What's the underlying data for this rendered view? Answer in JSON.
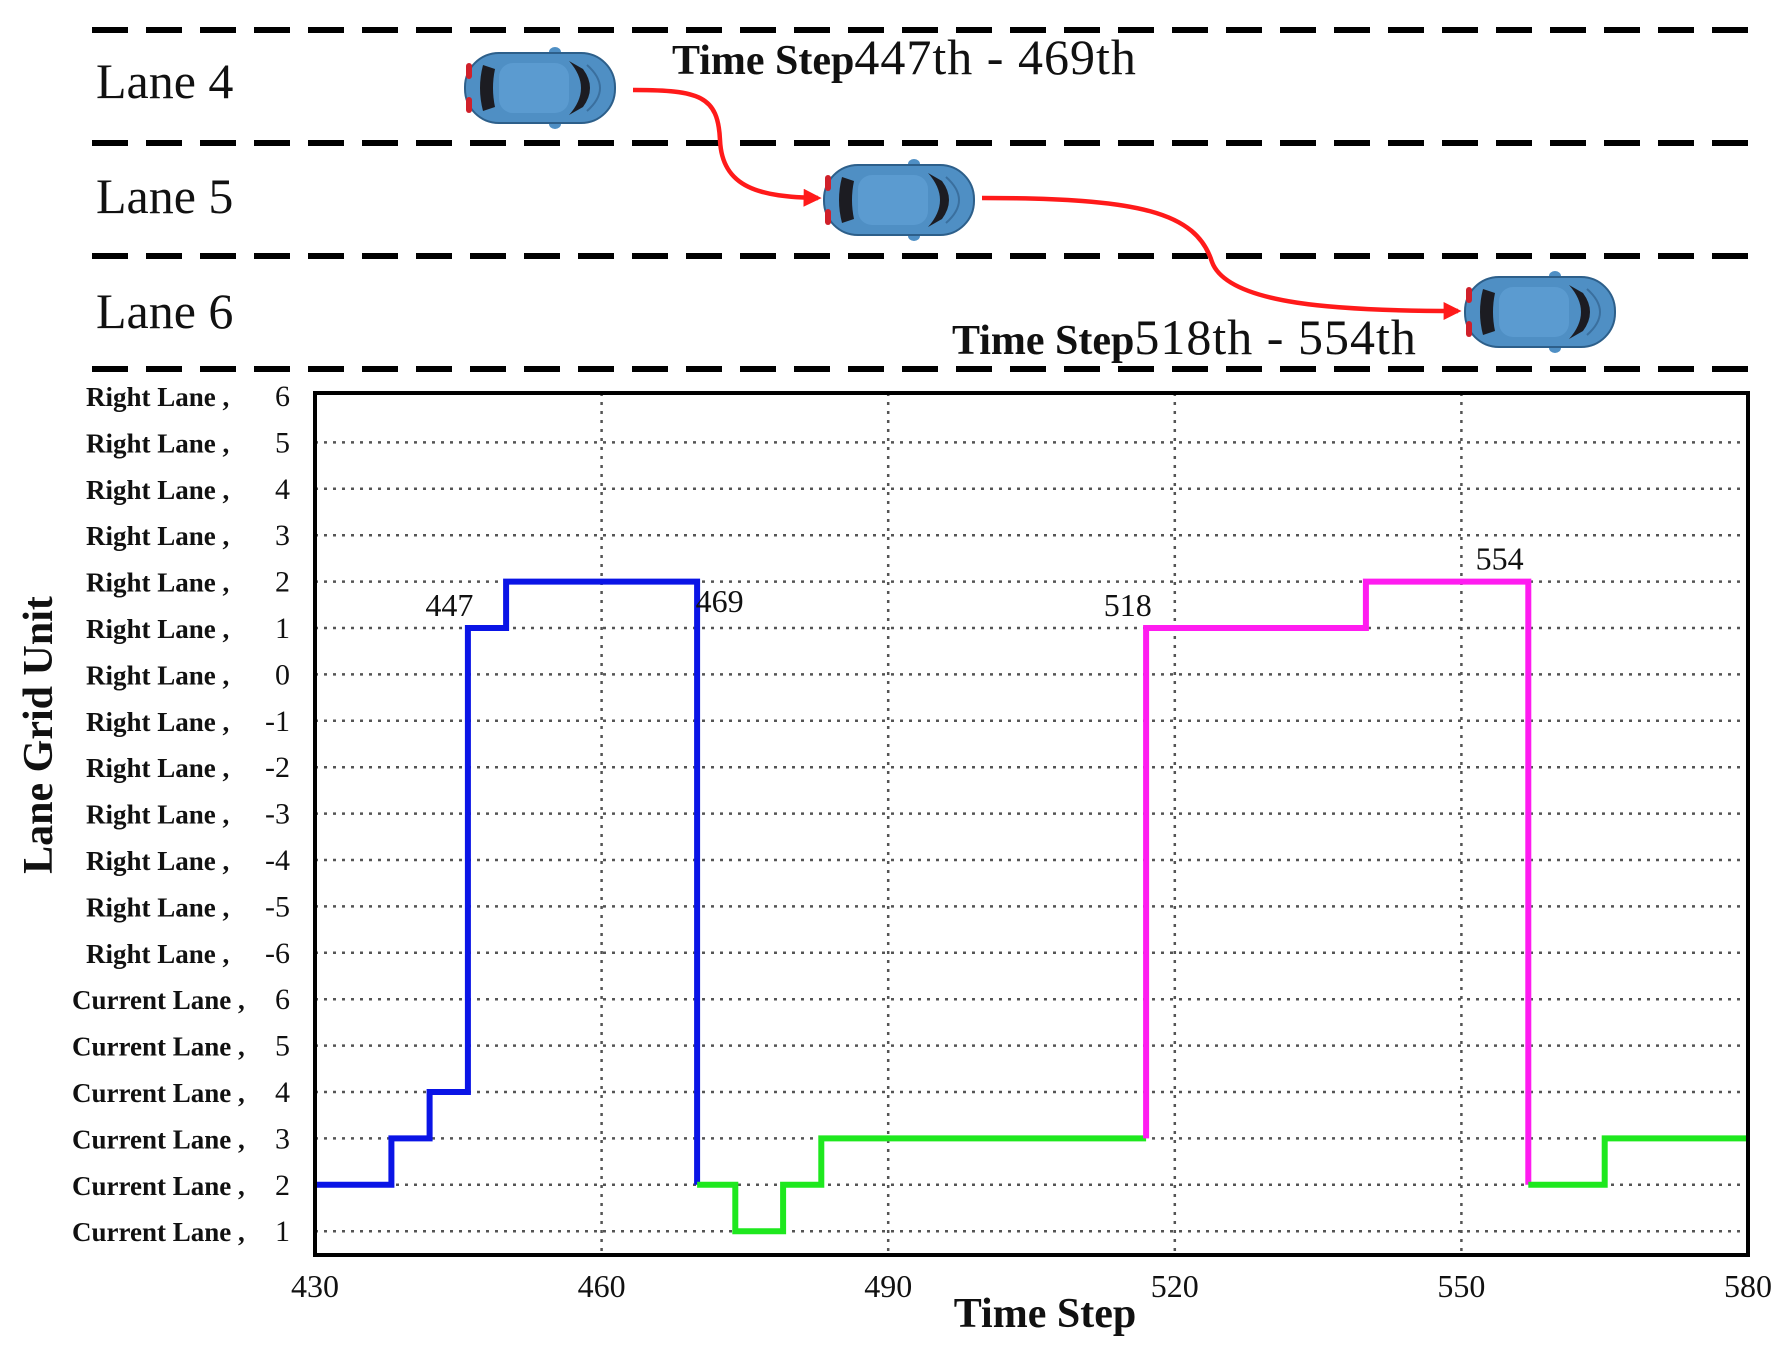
{
  "road": {
    "lanes": [
      {
        "label": "Lane 4"
      },
      {
        "label": "Lane 5"
      },
      {
        "label": "Lane 6"
      }
    ],
    "time_step_word": "Time Step",
    "range_top": "447th - 469th",
    "range_bottom": "518th - 554th",
    "car_color": "#4f8fc4",
    "arrow_color": "#ff1a1a"
  },
  "chart_data": {
    "type": "line",
    "step": true,
    "xlabel": "Time Step",
    "ylabel": "Lane Grid Unit",
    "xlim": [
      430,
      580
    ],
    "x_ticks": [
      430,
      460,
      490,
      520,
      550,
      580
    ],
    "y_ticks": [
      {
        "name": "Right Lane",
        "num": "6"
      },
      {
        "name": "Right Lane",
        "num": "5"
      },
      {
        "name": "Right Lane",
        "num": "4"
      },
      {
        "name": "Right Lane",
        "num": "3"
      },
      {
        "name": "Right Lane",
        "num": "2"
      },
      {
        "name": "Right Lane",
        "num": "1"
      },
      {
        "name": "Right Lane",
        "num": "0"
      },
      {
        "name": "Right Lane",
        "num": "-1"
      },
      {
        "name": "Right Lane",
        "num": "-2"
      },
      {
        "name": "Right Lane",
        "num": "-3"
      },
      {
        "name": "Right Lane",
        "num": "-4"
      },
      {
        "name": "Right Lane",
        "num": "-5"
      },
      {
        "name": "Right Lane",
        "num": "-6"
      },
      {
        "name": "Current Lane",
        "num": "6"
      },
      {
        "name": "Current Lane",
        "num": "5"
      },
      {
        "name": "Current Lane",
        "num": "4"
      },
      {
        "name": "Current Lane",
        "num": "3"
      },
      {
        "name": "Current Lane",
        "num": "2"
      },
      {
        "name": "Current Lane",
        "num": "1"
      }
    ],
    "grid": true,
    "series": [
      {
        "color": "#0a14e6",
        "points": [
          [
            430,
            "Current Lane, 2"
          ],
          [
            438,
            "Current Lane, 2"
          ],
          [
            438,
            "Current Lane, 3"
          ],
          [
            442,
            "Current Lane, 3"
          ],
          [
            442,
            "Current Lane, 4"
          ],
          [
            446,
            "Current Lane, 4"
          ],
          [
            446,
            "Right Lane, 1"
          ],
          [
            450,
            "Right Lane, 1"
          ],
          [
            450,
            "Right Lane, 2"
          ],
          [
            470,
            "Right Lane, 2"
          ],
          [
            470,
            "Current Lane, 2"
          ]
        ]
      },
      {
        "color": "#1ee81e",
        "points": [
          [
            470,
            "Current Lane, 2"
          ],
          [
            474,
            "Current Lane, 2"
          ],
          [
            474,
            "Current Lane, 1"
          ],
          [
            479,
            "Current Lane, 1"
          ],
          [
            479,
            "Current Lane, 2"
          ],
          [
            483,
            "Current Lane, 2"
          ],
          [
            483,
            "Current Lane, 3"
          ],
          [
            517,
            "Current Lane, 3"
          ]
        ]
      },
      {
        "color": "#ff1cf0",
        "points": [
          [
            517,
            "Current Lane, 3"
          ],
          [
            517,
            "Right Lane, 1"
          ],
          [
            540,
            "Right Lane, 1"
          ],
          [
            540,
            "Right Lane, 2"
          ],
          [
            557,
            "Right Lane, 2"
          ],
          [
            557,
            "Current Lane, 2"
          ]
        ]
      },
      {
        "color": "#1ee81e",
        "points": [
          [
            557,
            "Current Lane, 2"
          ],
          [
            565,
            "Current Lane, 2"
          ],
          [
            565,
            "Current Lane, 3"
          ],
          [
            580,
            "Current Lane, 3"
          ]
        ]
      }
    ],
    "annotations": [
      {
        "text": "447",
        "x": 447,
        "y": "Right Lane, 1",
        "anchor": "above-left"
      },
      {
        "text": "469",
        "x": 469,
        "y": "Right Lane, 1",
        "anchor": "right"
      },
      {
        "text": "518",
        "x": 518,
        "y": "Right Lane, 1",
        "anchor": "above-left"
      },
      {
        "text": "554",
        "x": 554,
        "y": "Right Lane, 2",
        "anchor": "above"
      }
    ]
  }
}
